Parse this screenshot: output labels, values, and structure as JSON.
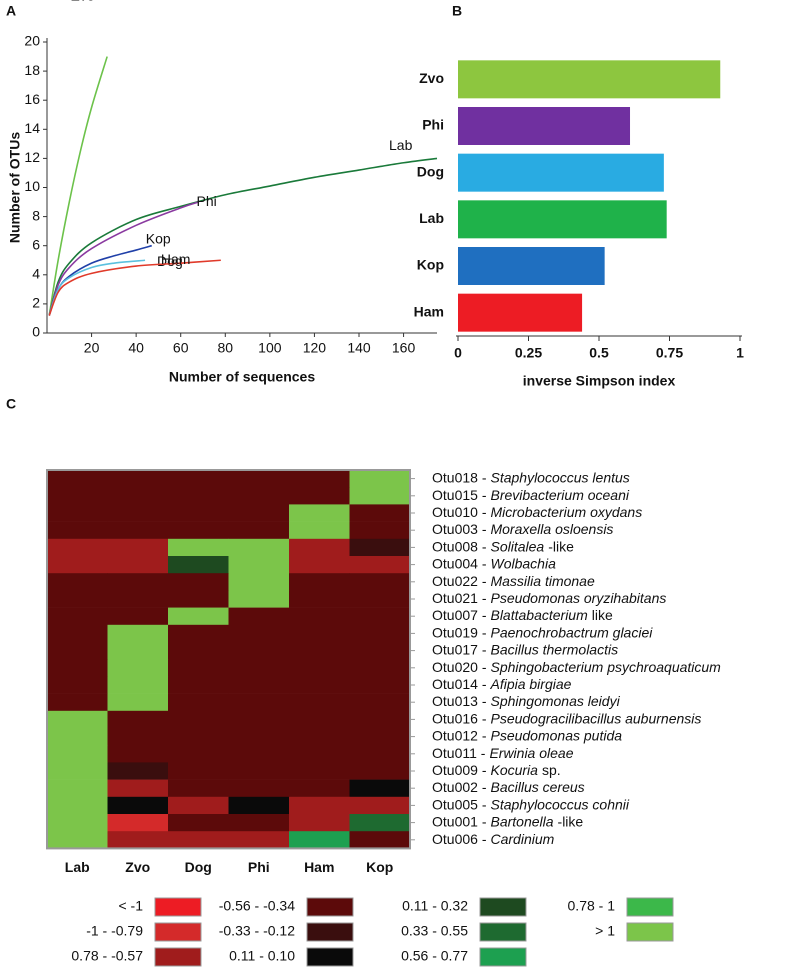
{
  "chart_data": [
    {
      "type": "line",
      "label": "A",
      "ylabel": "Number of OTUs",
      "xlabel": "Number of sequences",
      "xlim": [
        0,
        175
      ],
      "xticks": [
        20,
        40,
        60,
        80,
        100,
        120,
        140,
        160
      ],
      "ylim": [
        0,
        20
      ],
      "yticks": [
        0,
        2,
        4,
        6,
        8,
        10,
        12,
        14,
        16,
        18,
        20
      ],
      "series": [
        {
          "name": "Zvo",
          "color": "#6cc24a",
          "x": [
            1,
            5,
            10,
            15,
            20,
            27
          ],
          "values": [
            1.2,
            5,
            9,
            12.5,
            15.5,
            19
          ]
        },
        {
          "name": "Lab",
          "color": "#1a7a3a",
          "x": [
            1,
            5,
            10,
            20,
            40,
            60,
            80,
            100,
            120,
            140,
            160,
            175
          ],
          "values": [
            1.2,
            3.5,
            4.8,
            6.2,
            7.8,
            8.7,
            9.5,
            10.1,
            10.7,
            11.2,
            11.7,
            12
          ]
        },
        {
          "name": "Phi",
          "color": "#8a3aa0",
          "x": [
            1,
            5,
            10,
            20,
            40,
            60,
            68
          ],
          "values": [
            1.2,
            3.3,
            4.5,
            5.8,
            7.4,
            8.6,
            9
          ]
        },
        {
          "name": "Kop",
          "color": "#2040a8",
          "x": [
            1,
            5,
            10,
            20,
            30,
            40,
            47
          ],
          "values": [
            1.2,
            3,
            3.9,
            4.8,
            5.3,
            5.7,
            6
          ]
        },
        {
          "name": "Dog",
          "color": "#5bc0de",
          "x": [
            1,
            5,
            10,
            20,
            30,
            44
          ],
          "values": [
            1.2,
            3,
            3.8,
            4.5,
            4.8,
            5
          ]
        },
        {
          "name": "Ham",
          "color": "#e03a2a",
          "x": [
            1,
            5,
            10,
            20,
            40,
            60,
            78
          ],
          "values": [
            1.2,
            2.8,
            3.5,
            4.1,
            4.6,
            4.8,
            5
          ]
        }
      ]
    },
    {
      "type": "hbar",
      "label": "B",
      "xlabel": "inverse Simpson index",
      "categories": [
        "Zvo",
        "Phi",
        "Dog",
        "Lab",
        "Kop",
        "Ham"
      ],
      "values": [
        0.93,
        0.61,
        0.73,
        0.74,
        0.52,
        0.44
      ],
      "colors": [
        "#8dc63f",
        "#7030a0",
        "#29abe2",
        "#1fb24a",
        "#1f6fc0",
        "#ed1c24"
      ],
      "xlim": [
        0,
        1
      ],
      "xticks": [
        0,
        0.25,
        0.5,
        0.75,
        1
      ]
    },
    {
      "type": "heatmap",
      "label": "C",
      "columns": [
        "Lab",
        "Zvo",
        "Dog",
        "Phi",
        "Ham",
        "Kop"
      ],
      "rows": [
        {
          "id": "Otu018 -",
          "taxon": "Staphylococcus lentus"
        },
        {
          "id": "Otu015 -",
          "taxon": "Brevibacterium oceani"
        },
        {
          "id": "Otu010 -",
          "taxon": "Microbacterium oxydans"
        },
        {
          "id": "Otu003 -",
          "taxon": "Moraxella osloensis"
        },
        {
          "id": "Otu008 -",
          "taxon": "Solitalea",
          "suffix": "-like"
        },
        {
          "id": "Otu004 -",
          "taxon": "Wolbachia"
        },
        {
          "id": "Otu022 -",
          "taxon": "Massilia timonae"
        },
        {
          "id": "Otu021 -",
          "taxon": "Pseudomonas oryzihabitans"
        },
        {
          "id": "Otu007 -",
          "taxon": "Blattabacterium",
          "suffix": "like"
        },
        {
          "id": "Otu019 -",
          "taxon": "Paenochrobactrum glaciei"
        },
        {
          "id": "Otu017 -",
          "taxon": "Bacillus thermolactis"
        },
        {
          "id": "Otu020 -",
          "taxon": "Sphingobacterium psychroaquaticum"
        },
        {
          "id": "Otu014 -",
          "taxon": "Afipia birgiae"
        },
        {
          "id": "Otu013 -",
          "taxon": "Sphingomonas leidyi"
        },
        {
          "id": "Otu016 -",
          "taxon": "Pseudogracilibacillus auburnensis"
        },
        {
          "id": "Otu012 -",
          "taxon": "Pseudomonas putida"
        },
        {
          "id": "Otu011 -",
          "taxon": "Erwinia oleae"
        },
        {
          "id": "Otu009 -",
          "taxon": "Kocuria",
          "suffix": "sp."
        },
        {
          "id": "Otu002 -",
          "taxon": "Bacillus cereus"
        },
        {
          "id": "Otu005 -",
          "taxon": "Staphylococcus cohnii"
        },
        {
          "id": "Otu001 -",
          "taxon": "Bartonella",
          "suffix": "-like"
        },
        {
          "id": "Otu006 -",
          "taxon": "Cardinium"
        }
      ],
      "cells": [
        [
          "#5c0a0a",
          "#5c0a0a",
          "#5c0a0a",
          "#5c0a0a",
          "#5c0a0a",
          "#7cc54a"
        ],
        [
          "#5c0a0a",
          "#5c0a0a",
          "#5c0a0a",
          "#5c0a0a",
          "#5c0a0a",
          "#7cc54a"
        ],
        [
          "#5c0a0a",
          "#5c0a0a",
          "#5c0a0a",
          "#5c0a0a",
          "#7cc54a",
          "#5c0a0a"
        ],
        [
          "#5c0a0a",
          "#5c0a0a",
          "#5c0a0a",
          "#5c0a0a",
          "#7cc54a",
          "#5c0a0a"
        ],
        [
          "#a01c1c",
          "#a01c1c",
          "#7cc54a",
          "#7cc54a",
          "#a01c1c",
          "#3a0e0e"
        ],
        [
          "#a01c1c",
          "#a01c1c",
          "#1e4a20",
          "#7cc54a",
          "#a01c1c",
          "#a01c1c"
        ],
        [
          "#5c0a0a",
          "#5c0a0a",
          "#5c0a0a",
          "#7cc54a",
          "#5c0a0a",
          "#5c0a0a"
        ],
        [
          "#5c0a0a",
          "#5c0a0a",
          "#5c0a0a",
          "#7cc54a",
          "#5c0a0a",
          "#5c0a0a"
        ],
        [
          "#5c0a0a",
          "#5c0a0a",
          "#7cc54a",
          "#5c0a0a",
          "#5c0a0a",
          "#5c0a0a"
        ],
        [
          "#5c0a0a",
          "#7cc54a",
          "#5c0a0a",
          "#5c0a0a",
          "#5c0a0a",
          "#5c0a0a"
        ],
        [
          "#5c0a0a",
          "#7cc54a",
          "#5c0a0a",
          "#5c0a0a",
          "#5c0a0a",
          "#5c0a0a"
        ],
        [
          "#5c0a0a",
          "#7cc54a",
          "#5c0a0a",
          "#5c0a0a",
          "#5c0a0a",
          "#5c0a0a"
        ],
        [
          "#5c0a0a",
          "#7cc54a",
          "#5c0a0a",
          "#5c0a0a",
          "#5c0a0a",
          "#5c0a0a"
        ],
        [
          "#5c0a0a",
          "#7cc54a",
          "#5c0a0a",
          "#5c0a0a",
          "#5c0a0a",
          "#5c0a0a"
        ],
        [
          "#7cc54a",
          "#5c0a0a",
          "#5c0a0a",
          "#5c0a0a",
          "#5c0a0a",
          "#5c0a0a"
        ],
        [
          "#7cc54a",
          "#5c0a0a",
          "#5c0a0a",
          "#5c0a0a",
          "#5c0a0a",
          "#5c0a0a"
        ],
        [
          "#7cc54a",
          "#5c0a0a",
          "#5c0a0a",
          "#5c0a0a",
          "#5c0a0a",
          "#5c0a0a"
        ],
        [
          "#7cc54a",
          "#3a0e0e",
          "#5c0a0a",
          "#5c0a0a",
          "#5c0a0a",
          "#5c0a0a"
        ],
        [
          "#7cc54a",
          "#a01c1c",
          "#5c0a0a",
          "#5c0a0a",
          "#5c0a0a",
          "#0a0a0a"
        ],
        [
          "#7cc54a",
          "#0a0a0a",
          "#a01c1c",
          "#0a0a0a",
          "#a01c1c",
          "#a01c1c"
        ],
        [
          "#7cc54a",
          "#d42a2a",
          "#5c0a0a",
          "#5c0a0a",
          "#a01c1c",
          "#1e6a30"
        ],
        [
          "#7cc54a",
          "#a01c1c",
          "#a01c1c",
          "#a01c1c",
          "#1da050",
          "#5c0a0a"
        ]
      ],
      "legend": [
        {
          "label": "< -1",
          "color": "#ed1c24"
        },
        {
          "label": "-1 - -0.79",
          "color": "#d42a2a"
        },
        {
          "label": "0.78 - -0.57",
          "color": "#a01c1c"
        },
        {
          "label": "-0.56 - -0.34",
          "color": "#5c0a0a"
        },
        {
          "label": "-0.33 - -0.12",
          "color": "#3a0e0e"
        },
        {
          "label": "0.11 - 0.10",
          "color": "#0a0a0a"
        },
        {
          "label": "0.11  - 0.32",
          "color": "#1e4a20"
        },
        {
          "label": "0.33 - 0.55",
          "color": "#1e6a30"
        },
        {
          "label": "0.56 - 0.77",
          "color": "#1da050"
        },
        {
          "label": "0.78  - 1",
          "color": "#3cb84a"
        },
        {
          "label": "> 1",
          "color": "#7cc54a"
        }
      ]
    }
  ]
}
